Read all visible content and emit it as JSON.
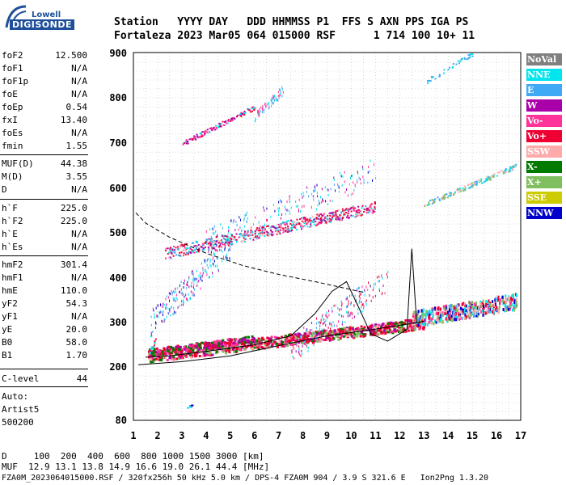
{
  "logo": {
    "line1": "Lowell",
    "line2": "DIGISONDE"
  },
  "header": {
    "line1": "Station   YYYY DAY   DDD HHMMSS P1  FFS S AXN PPS IGA PS",
    "line2": "Fortaleza 2023 Mar05 064 015000 RSF      1 714 100 10+ 11"
  },
  "params": [
    {
      "label": "foF2",
      "value": "12.500"
    },
    {
      "label": "foF1",
      "value": "N/A"
    },
    {
      "label": "foF1p",
      "value": "N/A"
    },
    {
      "label": "foE",
      "value": "N/A"
    },
    {
      "label": "foEp",
      "value": "0.54"
    },
    {
      "label": "fxI",
      "value": "13.40"
    },
    {
      "label": "foEs",
      "value": "N/A"
    },
    {
      "label": "fmin",
      "value": "1.55"
    },
    {
      "label": "MUF(D)",
      "value": "44.38"
    },
    {
      "label": "M(D)",
      "value": "3.55"
    },
    {
      "label": "D",
      "value": "N/A"
    },
    {
      "label": "h`F",
      "value": "225.0"
    },
    {
      "label": "h`F2",
      "value": "225.0"
    },
    {
      "label": "h`E",
      "value": "N/A"
    },
    {
      "label": "h`Es",
      "value": "N/A"
    },
    {
      "label": "hmF2",
      "value": "301.4"
    },
    {
      "label": "hmF1",
      "value": "N/A"
    },
    {
      "label": "hmE",
      "value": "110.0"
    },
    {
      "label": "yF2",
      "value": "54.3"
    },
    {
      "label": "yF1",
      "value": "N/A"
    },
    {
      "label": "yE",
      "value": "20.0"
    },
    {
      "label": "B0",
      "value": "58.0"
    },
    {
      "label": "B1",
      "value": "1.70"
    },
    {
      "label": "C-level",
      "value": "44"
    }
  ],
  "auto": {
    "line1": "Auto:",
    "line2": "Artist5",
    "line3": "500200"
  },
  "legend": [
    {
      "label": "NoVal",
      "color": "#808080"
    },
    {
      "label": "NNE",
      "color": "#00e5ee"
    },
    {
      "label": "E",
      "color": "#3fa9f5"
    },
    {
      "label": "W",
      "color": "#aa00aa"
    },
    {
      "label": "Vo-",
      "color": "#ff3399"
    },
    {
      "label": "Vo+",
      "color": "#ee0033"
    },
    {
      "label": "SSW",
      "color": "#ffaaaa"
    },
    {
      "label": "X-",
      "color": "#007a00"
    },
    {
      "label": "X+",
      "color": "#7fbf5f"
    },
    {
      "label": "SSE",
      "color": "#cccc00"
    },
    {
      "label": "NNW",
      "color": "#0000cc"
    }
  ],
  "footer": {
    "d_line": "D     100  200  400  600  800 1000 1500 3000 [km]",
    "muf_line": "MUF  12.9 13.1 13.8 14.9 16.6 19.0 26.1 44.4 [MHz]",
    "file_line": "FZA0M_2023064015000.RSF / 320fx256h 50 kHz 5.0 km / DPS-4 FZA0M 904 / 3.9 S 321.6 E   Ion2Png 1.3.20"
  },
  "chart_data": {
    "type": "scatter",
    "title": "",
    "xlabel": "",
    "ylabel": "",
    "x_ticks": [
      1,
      2,
      3,
      4,
      5,
      6,
      7,
      8,
      9,
      10,
      11,
      12,
      13,
      14,
      15,
      16,
      17
    ],
    "y_ticks": [
      80,
      200,
      300,
      400,
      500,
      600,
      700,
      800,
      900
    ],
    "xlim": [
      1,
      17
    ],
    "ylim": [
      80,
      900
    ],
    "grid": true,
    "legend_position": "right",
    "lines": [
      {
        "name": "",
        "points": [
          [
            1.2,
            205
          ],
          [
            3,
            212
          ],
          [
            5,
            225
          ],
          [
            7,
            248
          ],
          [
            9,
            270
          ],
          [
            11,
            285
          ],
          [
            12.5,
            298
          ],
          [
            13,
            303
          ]
        ]
      },
      {
        "name": "",
        "points": [
          [
            1.1,
            545
          ],
          [
            1.5,
            522
          ],
          [
            2.5,
            490
          ],
          [
            4,
            455
          ],
          [
            5.5,
            428
          ],
          [
            7,
            408
          ],
          [
            8.5,
            392
          ],
          [
            9.5,
            380
          ],
          [
            10.5,
            368
          ]
        ]
      },
      {
        "name": "",
        "points": [
          [
            1.5,
            222
          ],
          [
            2.5,
            225
          ],
          [
            4,
            235
          ],
          [
            6,
            250
          ],
          [
            7.5,
            270
          ],
          [
            8.5,
            320
          ],
          [
            9.2,
            370
          ],
          [
            9.8,
            392
          ],
          [
            10.3,
            335
          ],
          [
            10.8,
            275
          ],
          [
            11.5,
            258
          ],
          [
            12.3,
            285
          ],
          [
            12.5,
            465
          ],
          [
            12.7,
            300
          ]
        ]
      }
    ]
  }
}
